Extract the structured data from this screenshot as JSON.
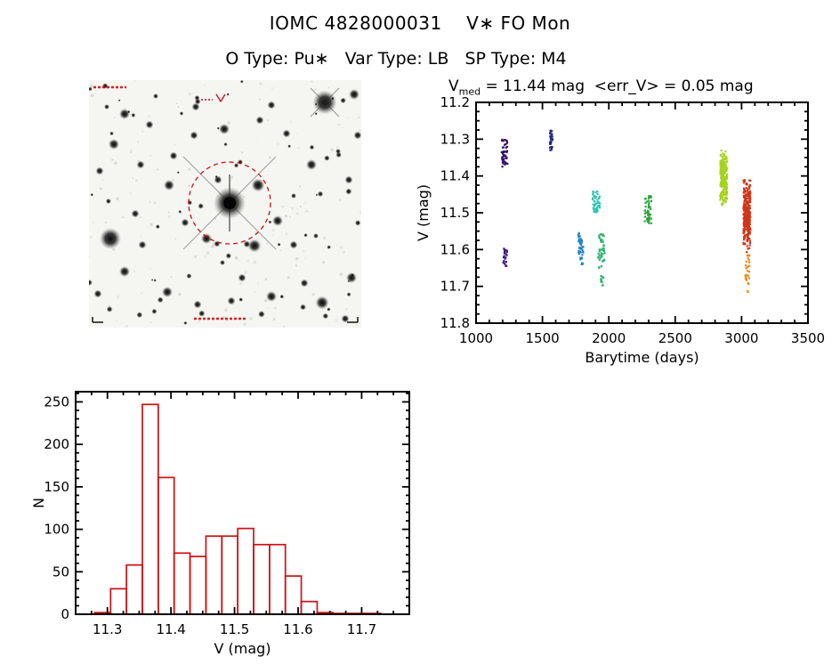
{
  "page": {
    "background": "#ffffff",
    "accent_red": "#cc0000"
  },
  "header": {
    "title": "IOMC 4828000031    V∗ FO Mon",
    "subtitle": "O Type: Pu∗   Var Type: LB   SP Type: M4"
  },
  "starfield": {
    "marker_color": "#cc0000"
  },
  "lightcurve_title": {
    "prefix": "V",
    "sub": "med",
    "rest": " = 11.44 mag  <err_V> = 0.05 mag"
  },
  "chart_data": [
    {
      "id": "lightcurve",
      "type": "scatter",
      "title": "V_med = 11.44 mag  <err_V> = 0.05 mag",
      "xlabel": "Barytime (days)",
      "ylabel": "V (mag)",
      "xlim": [
        1000,
        3500
      ],
      "ylim": [
        11.8,
        11.2
      ],
      "xticks": [
        1000,
        1500,
        2000,
        2500,
        3000,
        3500
      ],
      "xtick_labels": [
        "1000",
        "1500",
        "2000",
        "2500",
        "3000",
        "3500"
      ],
      "yticks": [
        11.2,
        11.3,
        11.4,
        11.5,
        11.6,
        11.7,
        11.8
      ],
      "ytick_labels": [
        "11.2",
        "11.3",
        "11.4",
        "11.5",
        "11.6",
        "11.7",
        "11.8"
      ],
      "x_minor_step": 100,
      "y_minor_step": 0.025,
      "grid": false,
      "clusters": [
        {
          "x": 1215,
          "dx": 22,
          "v1": 11.3,
          "v2": 11.375,
          "color": "#35106a",
          "n": 45
        },
        {
          "x": 1220,
          "dx": 15,
          "v1": 11.595,
          "v2": 11.65,
          "color": "#41197a",
          "n": 22
        },
        {
          "x": 1565,
          "dx": 12,
          "v1": 11.275,
          "v2": 11.33,
          "color": "#232a85",
          "n": 30
        },
        {
          "x": 1790,
          "dx": 20,
          "v1": 11.555,
          "v2": 11.615,
          "color": "#2383c4",
          "n": 35
        },
        {
          "x": 1795,
          "dx": 10,
          "v1": 11.62,
          "v2": 11.645,
          "color": "#2383c4",
          "n": 8
        },
        {
          "x": 1905,
          "dx": 28,
          "v1": 11.44,
          "v2": 11.5,
          "color": "#2fc4b2",
          "n": 55
        },
        {
          "x": 1945,
          "dx": 25,
          "v1": 11.555,
          "v2": 11.65,
          "color": "#2eb273",
          "n": 45
        },
        {
          "x": 1950,
          "dx": 12,
          "v1": 11.655,
          "v2": 11.7,
          "color": "#2eb273",
          "n": 10
        },
        {
          "x": 2295,
          "dx": 25,
          "v1": 11.455,
          "v2": 11.53,
          "color": "#2da43e",
          "n": 50
        },
        {
          "x": 2865,
          "dx": 26,
          "v1": 11.325,
          "v2": 11.485,
          "color": "#a6d31f",
          "n": 260
        },
        {
          "x": 3040,
          "dx": 26,
          "v1": 11.4,
          "v2": 11.61,
          "color": "#d23417",
          "n": 300
        },
        {
          "x": 3045,
          "dx": 18,
          "v1": 11.61,
          "v2": 11.695,
          "color": "#e78c1c",
          "n": 28
        },
        {
          "x": 3050,
          "dx": 6,
          "v1": 11.705,
          "v2": 11.72,
          "color": "#e7a51c",
          "n": 4
        }
      ]
    },
    {
      "id": "histogram",
      "type": "bar",
      "title": "",
      "xlabel": "V (mag)",
      "ylabel": "N",
      "xlim": [
        11.25,
        11.775
      ],
      "ylim": [
        0,
        262
      ],
      "xticks": [
        11.3,
        11.4,
        11.5,
        11.6,
        11.7
      ],
      "xtick_labels": [
        "11.3",
        "11.4",
        "11.5",
        "11.6",
        "11.7"
      ],
      "yticks": [
        0,
        50,
        100,
        150,
        200,
        250
      ],
      "ytick_labels": [
        "0",
        "50",
        "100",
        "150",
        "200",
        "250"
      ],
      "x_minor_step": 0.025,
      "y_minor_step": 10,
      "grid": false,
      "bar_color": "#d01010",
      "bin_start": 11.28,
      "bin_width": 0.025,
      "counts": [
        2,
        30,
        58,
        247,
        161,
        72,
        68,
        92,
        92,
        101,
        82,
        82,
        45,
        15,
        2,
        1,
        1,
        1
      ]
    }
  ]
}
